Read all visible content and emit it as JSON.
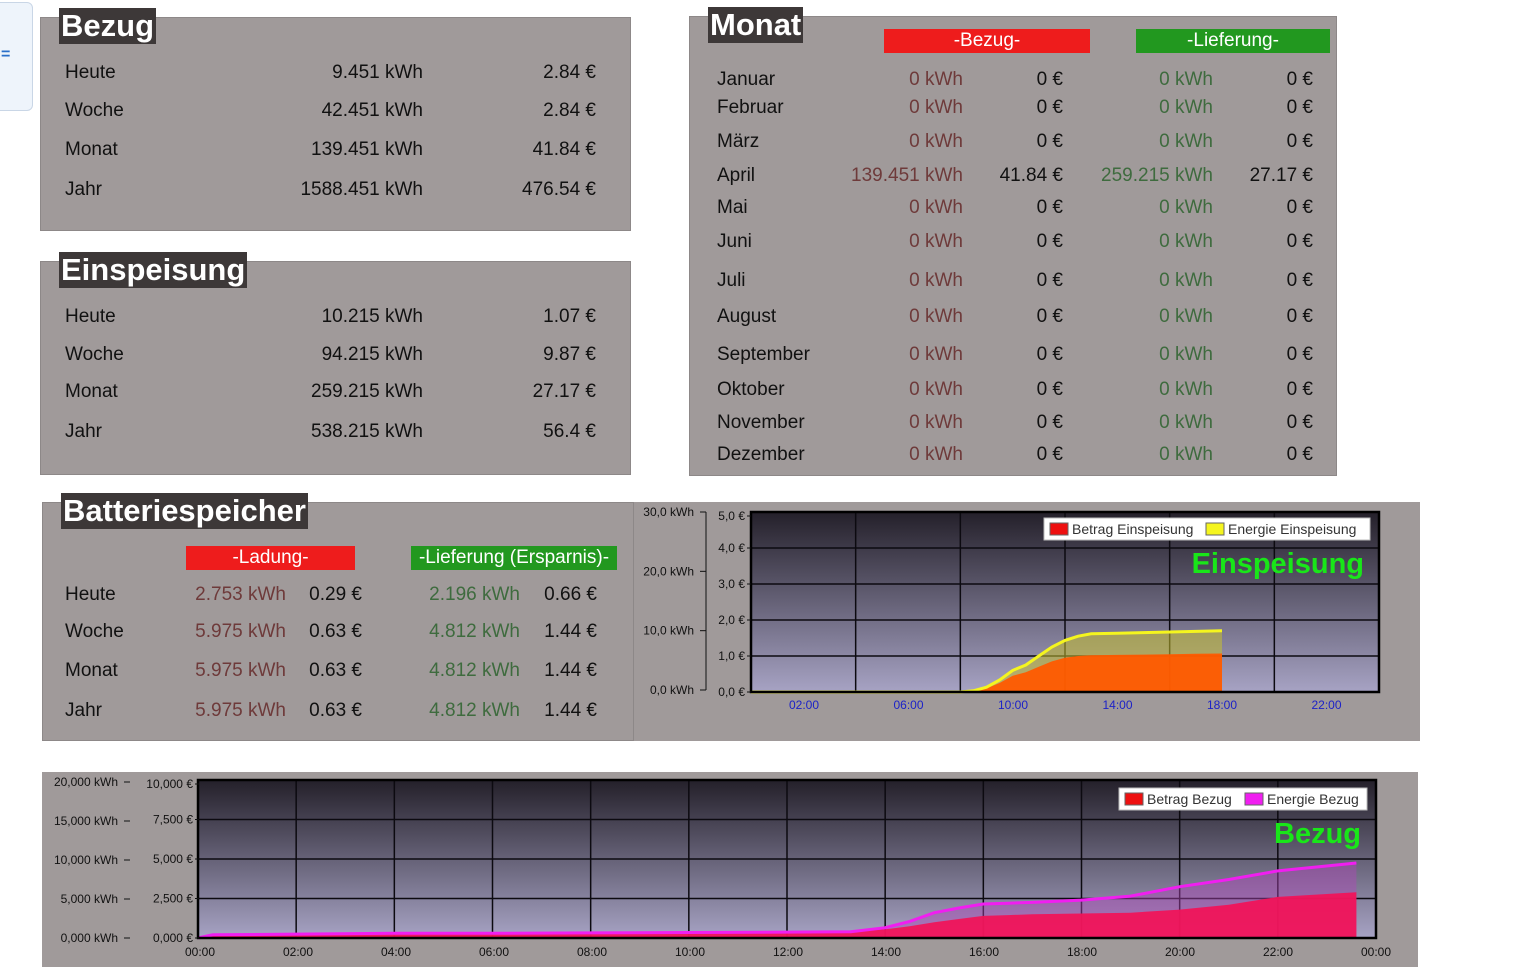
{
  "bezug": {
    "title": "Bezug",
    "rows": [
      {
        "label": "Heute",
        "energy": "9.451 kWh",
        "cost": "2.84 €"
      },
      {
        "label": "Woche",
        "energy": "42.451 kWh",
        "cost": "2.84 €"
      },
      {
        "label": "Monat",
        "energy": "139.451 kWh",
        "cost": "41.84 €"
      },
      {
        "label": "Jahr",
        "energy": "1588.451 kWh",
        "cost": "476.54 €"
      }
    ]
  },
  "einspeisung": {
    "title": "Einspeisung",
    "rows": [
      {
        "label": "Heute",
        "energy": "10.215 kWh",
        "cost": "1.07 €"
      },
      {
        "label": "Woche",
        "energy": "94.215 kWh",
        "cost": "9.87 €"
      },
      {
        "label": "Monat",
        "energy": "259.215 kWh",
        "cost": "27.17 €"
      },
      {
        "label": "Jahr",
        "energy": "538.215 kWh",
        "cost": "56.4 €"
      }
    ]
  },
  "monat": {
    "title": "Monat",
    "bezug_tag": "-Bezug-",
    "lieferung_tag": "-Lieferung-",
    "rows": [
      {
        "label": "Januar",
        "b_e": "0 kWh",
        "b_c": "0 €",
        "l_e": "0 kWh",
        "l_c": "0 €"
      },
      {
        "label": "Februar",
        "b_e": "0 kWh",
        "b_c": "0 €",
        "l_e": "0 kWh",
        "l_c": "0 €"
      },
      {
        "label": "März",
        "b_e": "0 kWh",
        "b_c": "0 €",
        "l_e": "0 kWh",
        "l_c": "0 €"
      },
      {
        "label": "April",
        "b_e": "139.451 kWh",
        "b_c": "41.84 €",
        "l_e": "259.215 kWh",
        "l_c": "27.17 €"
      },
      {
        "label": "Mai",
        "b_e": "0 kWh",
        "b_c": "0 €",
        "l_e": "0 kWh",
        "l_c": "0 €"
      },
      {
        "label": "Juni",
        "b_e": "0 kWh",
        "b_c": "0 €",
        "l_e": "0 kWh",
        "l_c": "0 €"
      },
      {
        "label": "Juli",
        "b_e": "0 kWh",
        "b_c": "0 €",
        "l_e": "0 kWh",
        "l_c": "0 €"
      },
      {
        "label": "August",
        "b_e": "0 kWh",
        "b_c": "0 €",
        "l_e": "0 kWh",
        "l_c": "0 €"
      },
      {
        "label": "September",
        "b_e": "0 kWh",
        "b_c": "0 €",
        "l_e": "0 kWh",
        "l_c": "0 €"
      },
      {
        "label": "Oktober",
        "b_e": "0 kWh",
        "b_c": "0 €",
        "l_e": "0 kWh",
        "l_c": "0 €"
      },
      {
        "label": "November",
        "b_e": "0 kWh",
        "b_c": "0 €",
        "l_e": "0 kWh",
        "l_c": "0 €"
      },
      {
        "label": "Dezember",
        "b_e": "0 kWh",
        "b_c": "0 €",
        "l_e": "0 kWh",
        "l_c": "0 €"
      }
    ]
  },
  "batterie": {
    "title": "Batteriespeicher",
    "ladung_tag": "-Ladung-",
    "lieferung_tag": "-Lieferung (Ersparnis)-",
    "rows": [
      {
        "label": "Heute",
        "l_e": "2.753 kWh",
        "l_c": "0.29 €",
        "s_e": "2.196 kWh",
        "s_c": "0.66 €"
      },
      {
        "label": "Woche",
        "l_e": "5.975 kWh",
        "l_c": "0.63 €",
        "s_e": "4.812 kWh",
        "s_c": "1.44 €"
      },
      {
        "label": "Monat",
        "l_e": "5.975 kWh",
        "l_c": "0.63 €",
        "s_e": "4.812 kWh",
        "s_c": "1.44 €"
      },
      {
        "label": "Jahr",
        "l_e": "5.975 kWh",
        "l_c": "0.63 €",
        "s_e": "4.812 kWh",
        "s_c": "1.44 €"
      }
    ]
  },
  "colors": {
    "panel": "#a09a9a",
    "title_bg": "#3d3838",
    "red_tag": "#ee1c1c",
    "green_tag": "#22981f",
    "chart_title": "#19e619",
    "area_red": "#ff5a00",
    "line_yellow": "#f5f51e",
    "line_magenta": "#f01ef0",
    "area_crimson": "#f0145a"
  },
  "chart_data": [
    {
      "type": "area",
      "title": "Einspeisung",
      "legend": [
        "Betrag Einspeisung",
        "Energie Einspeisung"
      ],
      "legend_position": "top-right",
      "grid": true,
      "x_ticks": [
        "02:00",
        "06:00",
        "10:00",
        "14:00",
        "18:00",
        "22:00"
      ],
      "y_left_ticks": [
        "30,0 kWh",
        "20,0 kWh",
        "10,0 kWh",
        "0,0 kWh"
      ],
      "y_right_ticks": [
        "5,0 €",
        "4,0 €",
        "3,0 €",
        "2,0 €",
        "1,0 €",
        "0,0 €"
      ],
      "ylim_energy": [
        0,
        30
      ],
      "ylim_cost": [
        0,
        5
      ],
      "x_hours": [
        0,
        2,
        4,
        6,
        7,
        8,
        8.5,
        9,
        9.5,
        10,
        10.5,
        11,
        11.5,
        12,
        12.5,
        13,
        14,
        15,
        16,
        17,
        18
      ],
      "series": [
        {
          "name": "Betrag Einspeisung",
          "axis": "cost",
          "values": [
            0,
            0,
            0,
            0,
            0,
            0,
            0.03,
            0.1,
            0.25,
            0.45,
            0.55,
            0.7,
            0.85,
            0.95,
            1.0,
            1.02,
            1.03,
            1.04,
            1.05,
            1.06,
            1.07
          ]
        },
        {
          "name": "Energie Einspeisung",
          "axis": "energy",
          "values": [
            0,
            0,
            0,
            0,
            0,
            0,
            0.2,
            0.8,
            2.0,
            3.6,
            4.5,
            6.0,
            7.5,
            8.6,
            9.3,
            9.7,
            9.8,
            9.9,
            10.0,
            10.1,
            10.2
          ]
        }
      ]
    },
    {
      "type": "area",
      "title": "Bezug",
      "legend": [
        "Betrag Bezug",
        "Energie Bezug"
      ],
      "legend_position": "top-right",
      "grid": true,
      "x_ticks": [
        "00:00",
        "02:00",
        "04:00",
        "06:00",
        "08:00",
        "10:00",
        "12:00",
        "14:00",
        "16:00",
        "18:00",
        "20:00",
        "22:00",
        "00:00"
      ],
      "y_left_ticks": [
        "20,000 kWh",
        "15,000 kWh",
        "10,000 kWh",
        "5,000 kWh",
        "0,000 kWh"
      ],
      "y_right_ticks": [
        "10,000 €",
        "7,500 €",
        "5,000 €",
        "2,500 €",
        "0,000 €"
      ],
      "ylim_energy": [
        0,
        20
      ],
      "ylim_cost": [
        0,
        10
      ],
      "x_hours": [
        0,
        0.3,
        2,
        4,
        6,
        8,
        10,
        12,
        13.3,
        14,
        14.5,
        15,
        15.5,
        16,
        16.5,
        17,
        18,
        19,
        20,
        21,
        22,
        23.6
      ],
      "series": [
        {
          "name": "Betrag Bezug",
          "axis": "cost",
          "values": [
            0,
            0.15,
            0.2,
            0.25,
            0.3,
            0.32,
            0.34,
            0.36,
            0.4,
            0.55,
            0.75,
            1.0,
            1.2,
            1.4,
            1.45,
            1.5,
            1.55,
            1.6,
            1.8,
            2.1,
            2.6,
            2.9
          ]
        },
        {
          "name": "Energie Bezug",
          "axis": "energy",
          "values": [
            0,
            0.4,
            0.5,
            0.6,
            0.6,
            0.65,
            0.7,
            0.75,
            0.8,
            1.3,
            2.1,
            3.2,
            3.8,
            4.3,
            4.4,
            4.5,
            4.8,
            5.3,
            6.5,
            7.4,
            8.5,
            9.5
          ]
        }
      ]
    }
  ]
}
